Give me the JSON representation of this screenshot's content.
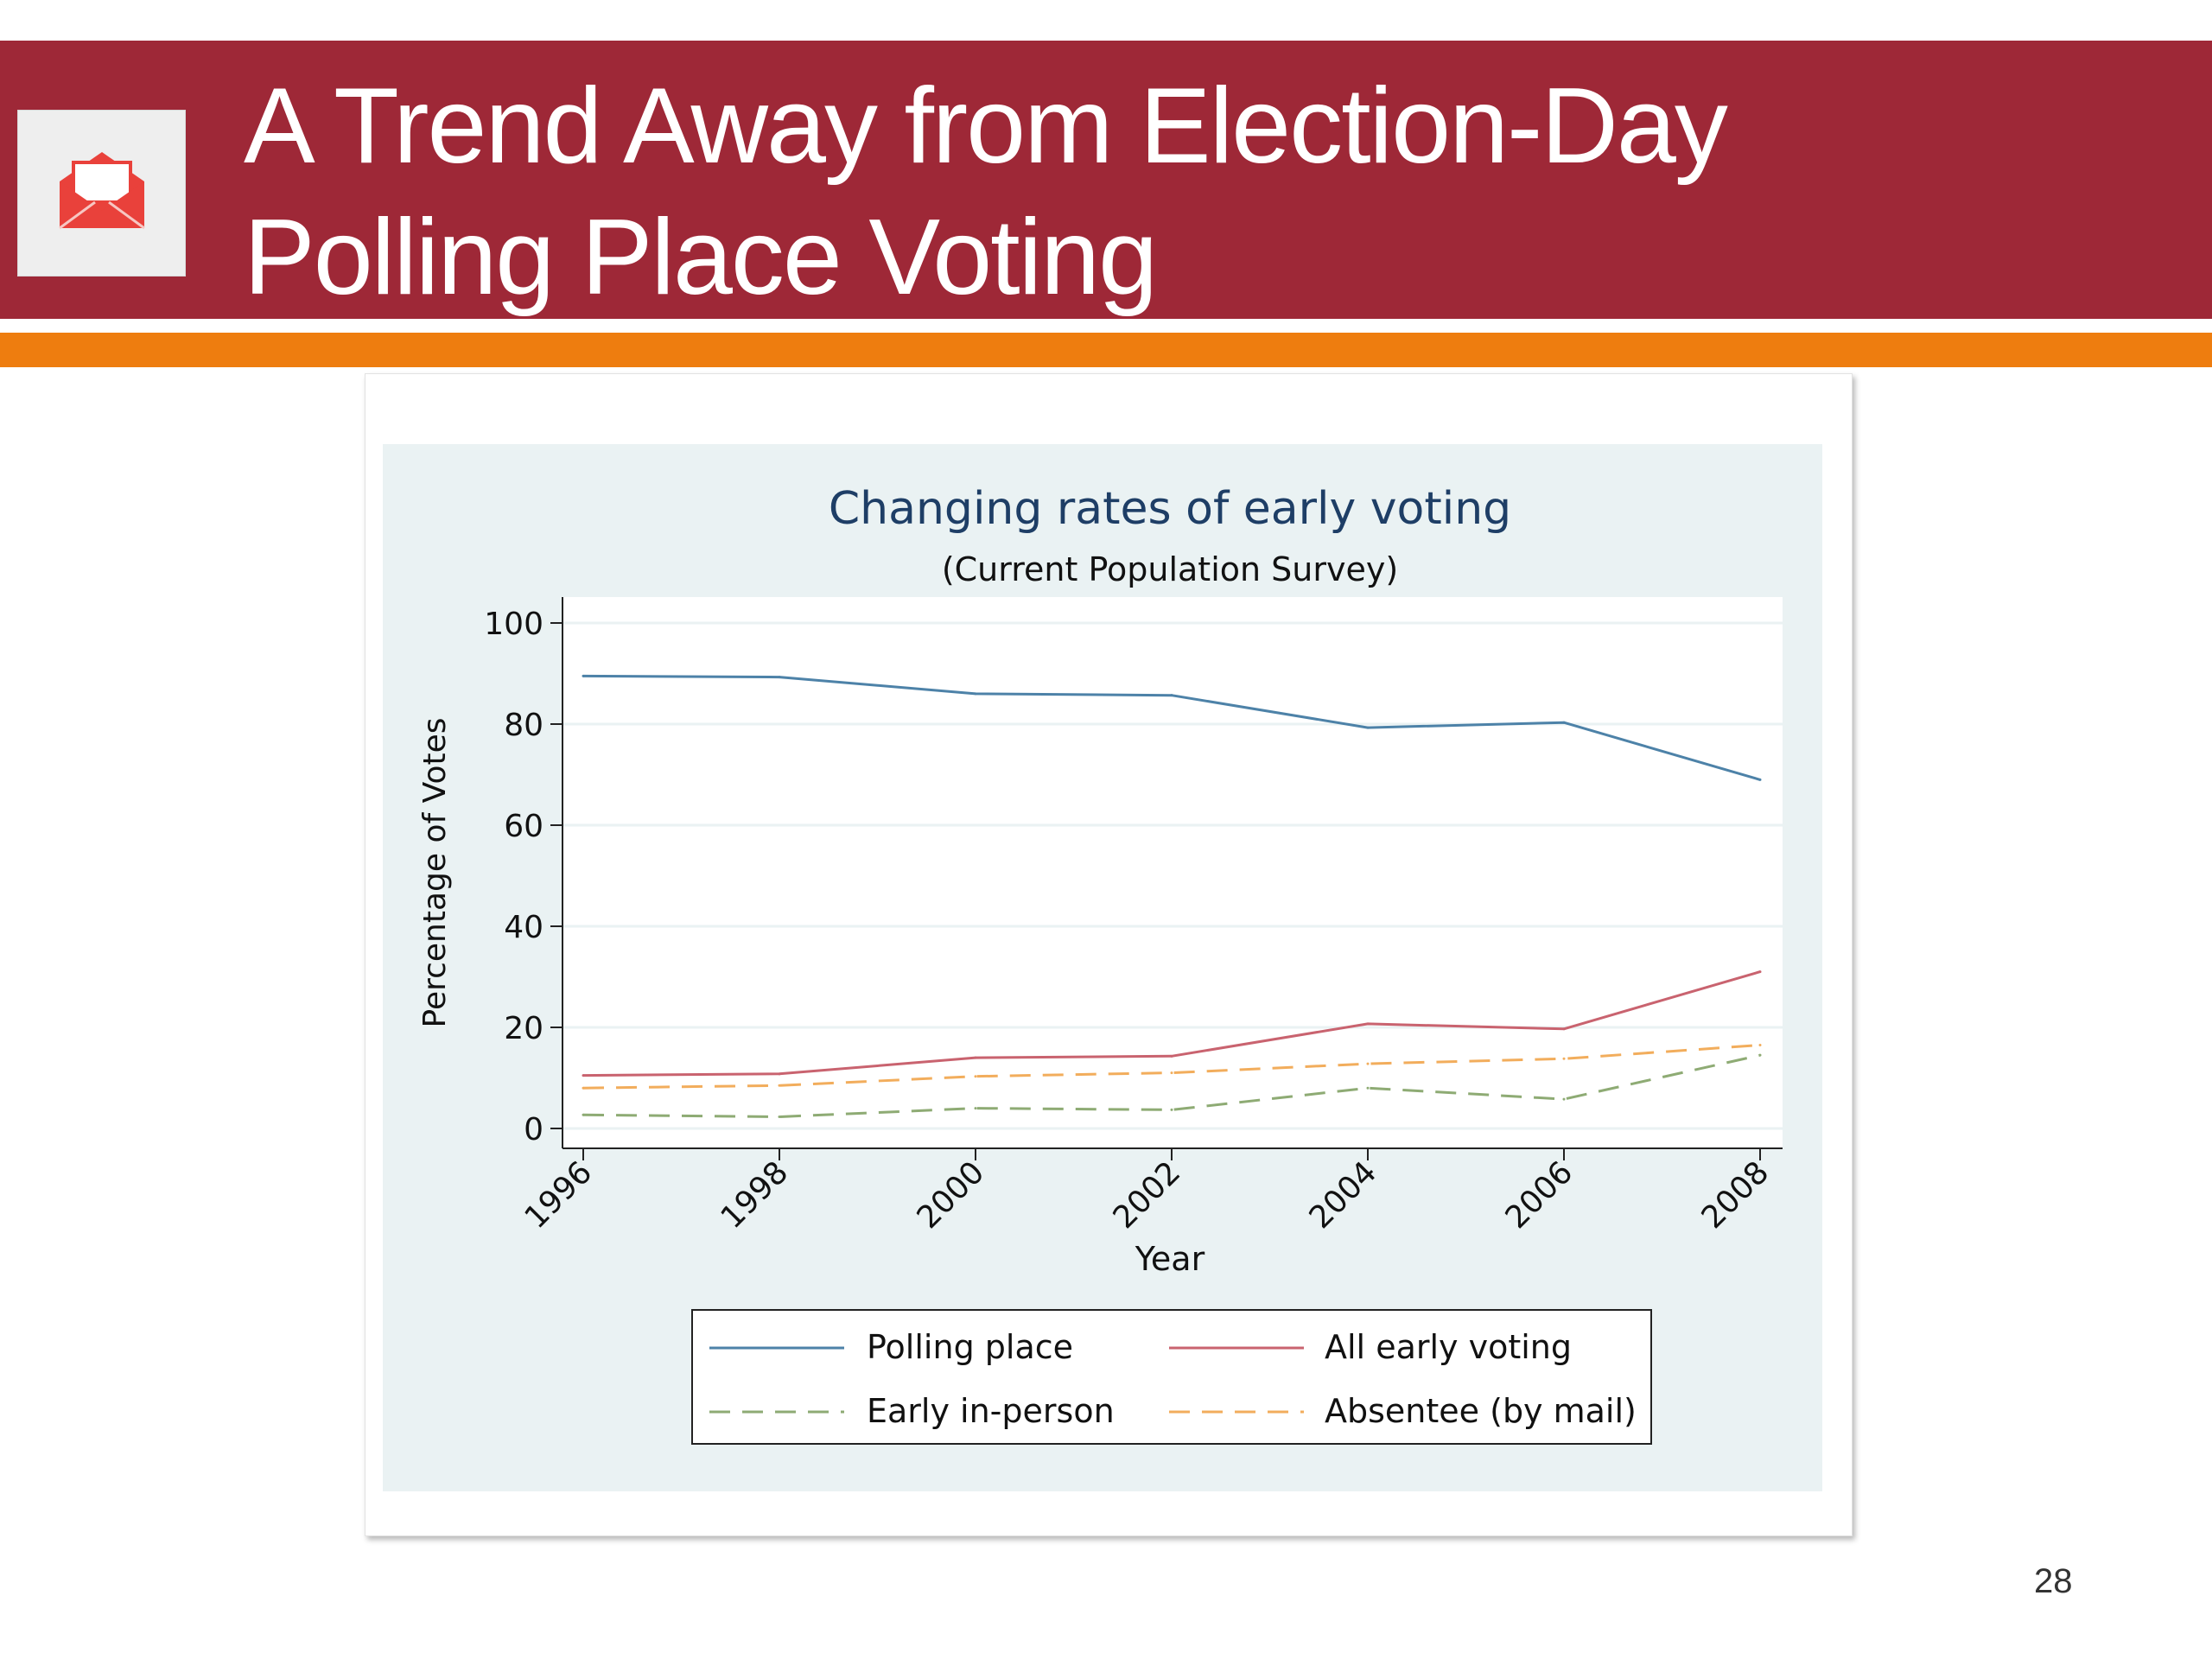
{
  "slide": {
    "title_line1": "A Trend Away from Election-Day",
    "title_line2": "Polling Place Voting",
    "page_number": "28",
    "logo_icon": "envelope-icon",
    "colors": {
      "title_band": "#9e2837",
      "accent_band": "#ee7d0f",
      "logo": "#e9413b"
    }
  },
  "chart_data": {
    "type": "line",
    "title": "Changing rates of early voting",
    "subtitle": "(Current Population Survey)",
    "xlabel": "Year",
    "ylabel": "Percentage of Votes",
    "x": [
      1996,
      1998,
      2000,
      2002,
      2004,
      2006,
      2008
    ],
    "x_ticks": [
      "1996",
      "1998",
      "2000",
      "2002",
      "2004",
      "2006",
      "2008"
    ],
    "y_ticks": [
      0,
      20,
      40,
      60,
      80,
      100
    ],
    "ylim": [
      0,
      100
    ],
    "grid": true,
    "legend_position": "bottom",
    "series": [
      {
        "name": "Polling place",
        "values": [
          89.5,
          89.3,
          86.0,
          85.7,
          79.3,
          80.3,
          69.0
        ],
        "color": "#4d82a8",
        "dash": "solid"
      },
      {
        "name": "All early voting",
        "values": [
          10.5,
          10.8,
          14.0,
          14.3,
          20.7,
          19.7,
          31.0
        ],
        "color": "#c9636f",
        "dash": "solid"
      },
      {
        "name": "Early in-person",
        "values": [
          2.7,
          2.3,
          4.0,
          3.7,
          8.0,
          5.8,
          14.5
        ],
        "color": "#8eab74",
        "dash": "dashed"
      },
      {
        "name": "Absentee (by mail)",
        "values": [
          8.0,
          8.5,
          10.3,
          11.0,
          12.8,
          13.8,
          16.5
        ],
        "color": "#f2ad5c",
        "dash": "dashed"
      }
    ]
  }
}
